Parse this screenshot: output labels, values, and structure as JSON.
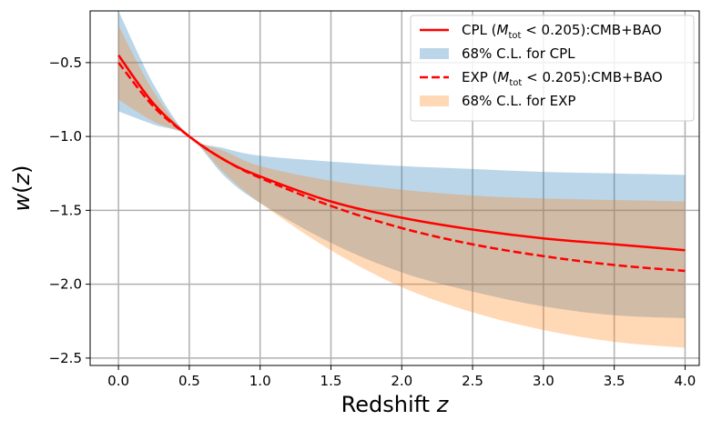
{
  "chart_data": {
    "type": "area",
    "xlabel": "Redshift z",
    "ylabel": "w(z)",
    "xlim": [
      -0.2,
      4.1
    ],
    "ylim": [
      -2.55,
      -0.15
    ],
    "xticks": [
      0.0,
      0.5,
      1.0,
      1.5,
      2.0,
      2.5,
      3.0,
      3.5,
      4.0
    ],
    "xtick_labels": [
      "0.0",
      "0.5",
      "1.0",
      "1.5",
      "2.0",
      "2.5",
      "3.0",
      "3.5",
      "4.0"
    ],
    "yticks": [
      -0.5,
      -1.0,
      -1.5,
      -2.0,
      -2.5
    ],
    "ytick_labels": [
      "−0.5",
      "−1.0",
      "−1.5",
      "−2.0",
      "−2.5"
    ],
    "grid": true,
    "legend_position": "top-right",
    "x": [
      0.0,
      0.25,
      0.5,
      0.75,
      1.0,
      1.5,
      2.0,
      2.5,
      3.0,
      3.5,
      4.0
    ],
    "series": [
      {
        "name": "CPL (M_tot < 0.205):CMB+BAO",
        "legend_parts": [
          "CPL (",
          "M",
          "tot",
          " < 0.205):CMB+BAO"
        ],
        "kind": "line",
        "style": "solid",
        "color": "#ff0000",
        "values": [
          -0.45,
          -0.78,
          -1.0,
          -1.16,
          -1.27,
          -1.44,
          -1.55,
          -1.63,
          -1.69,
          -1.73,
          -1.77
        ]
      },
      {
        "name": "68% C.L. for CPL",
        "kind": "band",
        "color": "#1f77b4",
        "opacity": 0.3,
        "upper": [
          -0.15,
          -0.65,
          -1.0,
          -1.08,
          -1.13,
          -1.17,
          -1.2,
          -1.22,
          -1.24,
          -1.25,
          -1.26
        ],
        "lower": [
          -0.83,
          -0.92,
          -1.0,
          -1.27,
          -1.45,
          -1.72,
          -1.92,
          -2.05,
          -2.15,
          -2.21,
          -2.23
        ]
      },
      {
        "name": "EXP (M_tot < 0.205):CMB+BAO",
        "legend_parts": [
          "EXP (",
          "M",
          "tot",
          " < 0.205):CMB+BAO"
        ],
        "kind": "line",
        "style": "dashed",
        "color": "#ff0000",
        "values": [
          -0.5,
          -0.8,
          -1.0,
          -1.16,
          -1.28,
          -1.47,
          -1.62,
          -1.73,
          -1.81,
          -1.87,
          -1.91
        ]
      },
      {
        "name": "68% C.L. for EXP",
        "kind": "band",
        "color": "#ff7f0e",
        "opacity": 0.3,
        "upper": [
          -0.25,
          -0.7,
          -1.0,
          -1.1,
          -1.2,
          -1.3,
          -1.36,
          -1.4,
          -1.42,
          -1.43,
          -1.44
        ],
        "lower": [
          -0.75,
          -0.9,
          -1.0,
          -1.25,
          -1.45,
          -1.77,
          -2.02,
          -2.19,
          -2.31,
          -2.39,
          -2.43
        ]
      }
    ]
  }
}
